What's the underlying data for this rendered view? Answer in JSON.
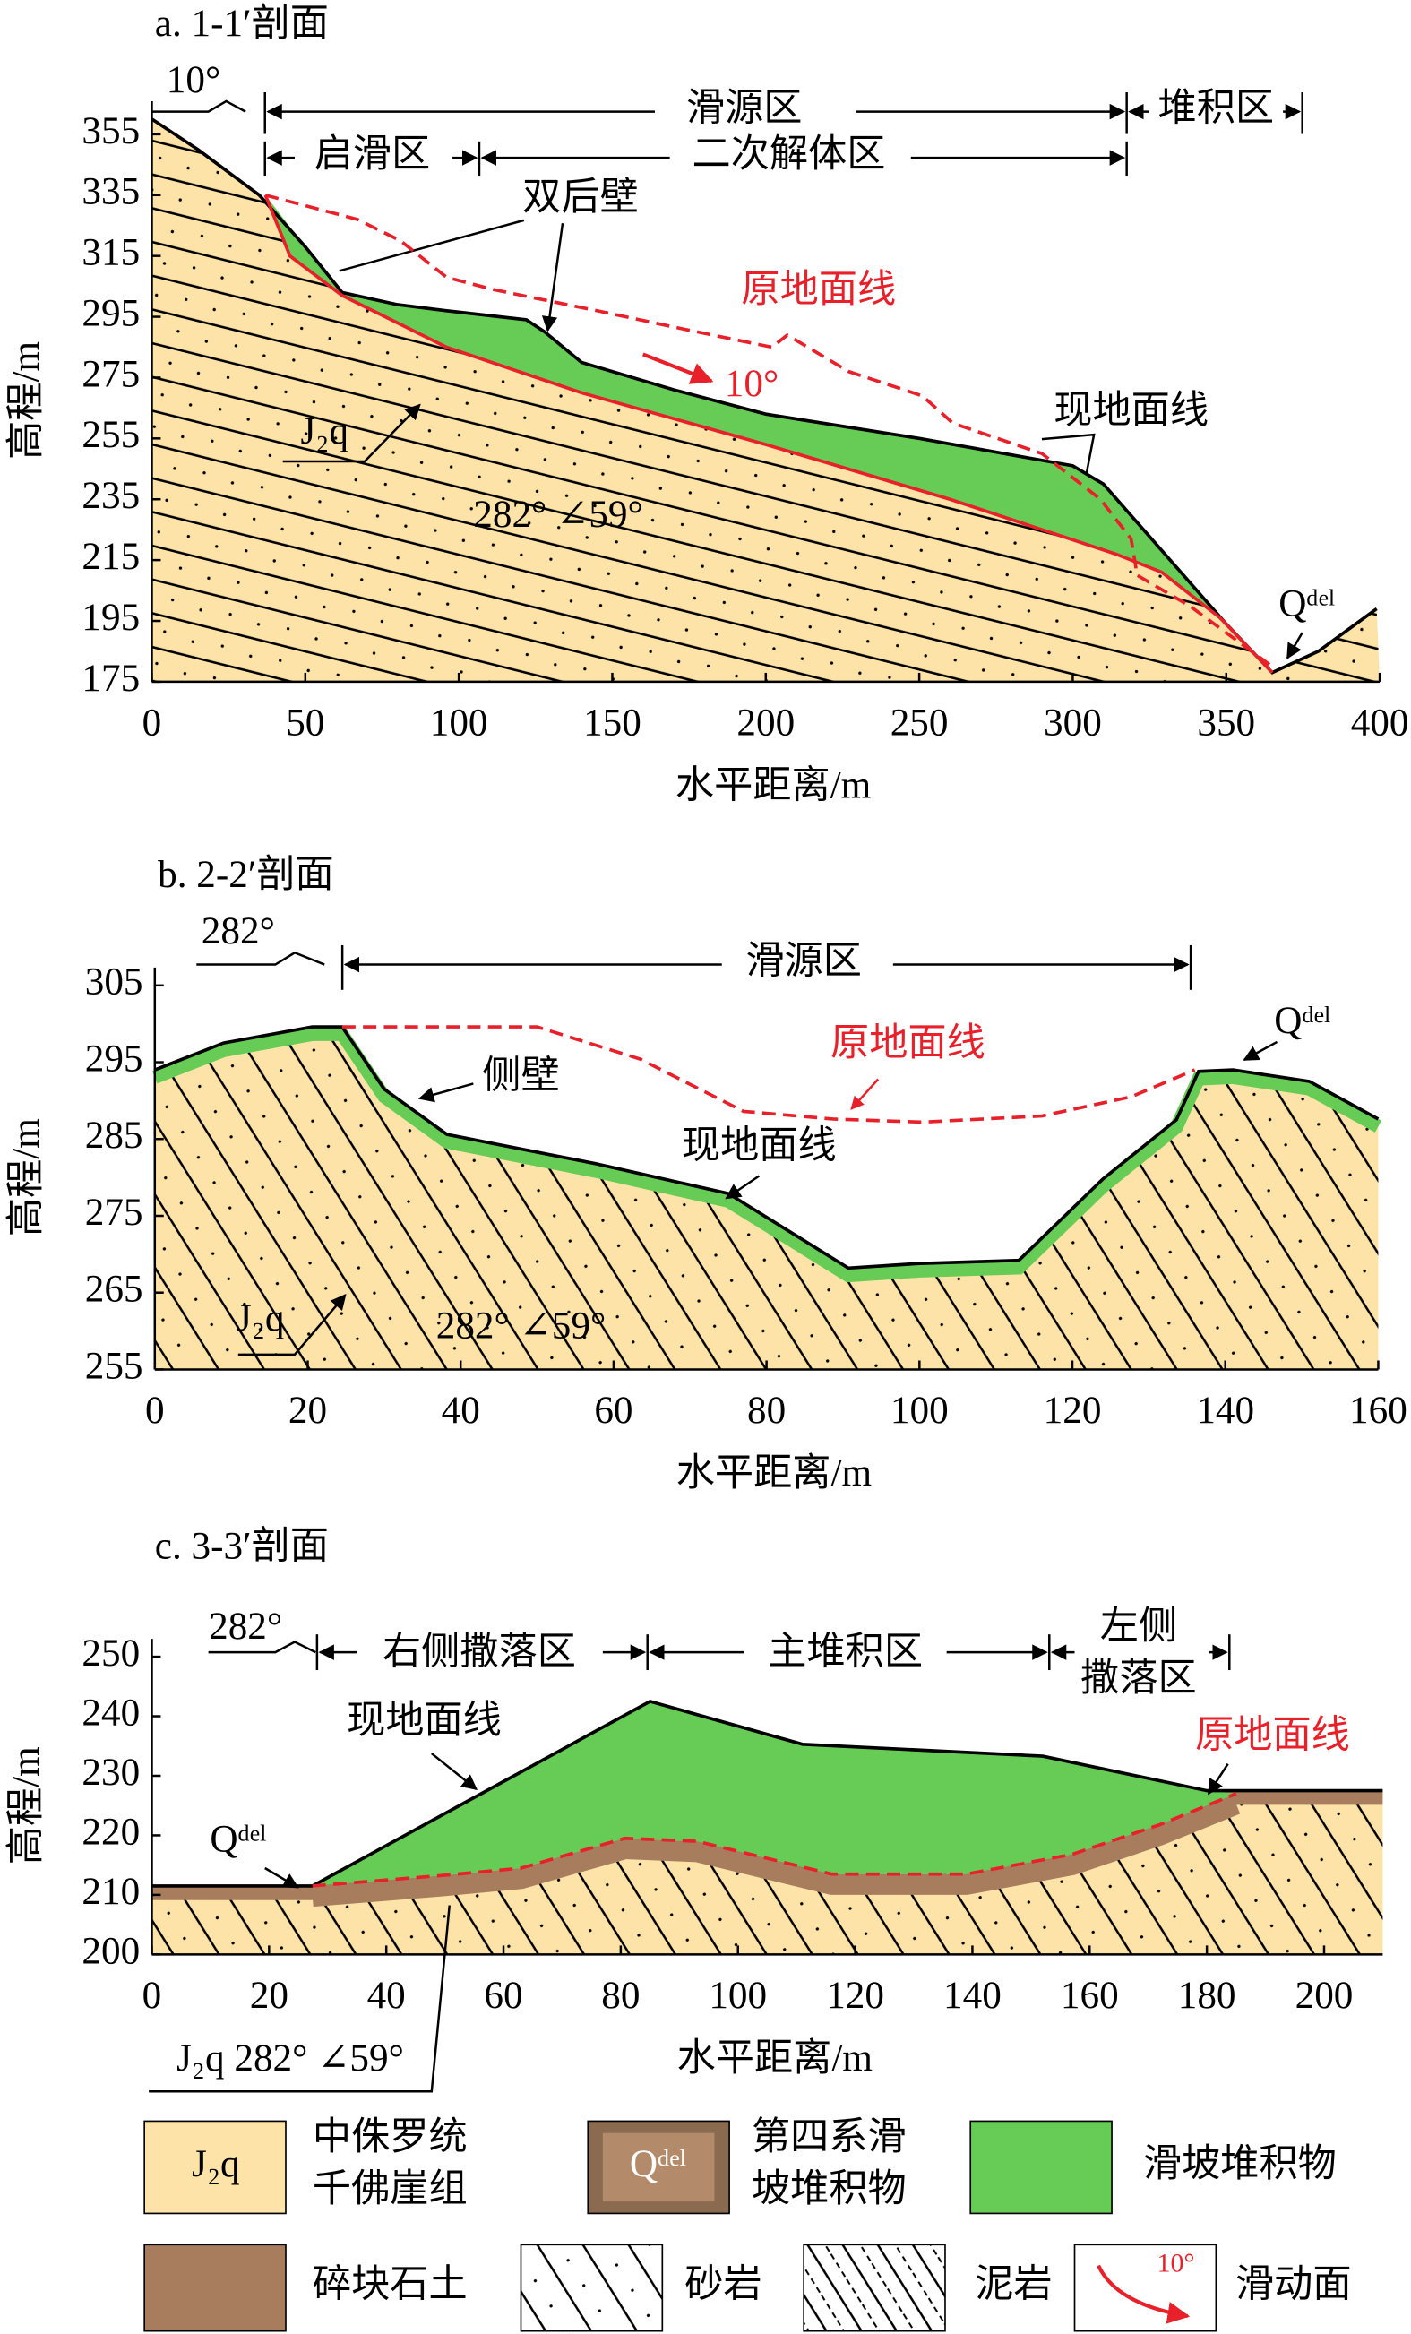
{
  "chart_data": [
    {
      "type": "line",
      "title": "a. 1-1′剖面",
      "xlabel": "水平距离/m",
      "ylabel": "高程/m",
      "xlim": [
        0,
        400
      ],
      "ylim": [
        175,
        360
      ],
      "xticks": [
        0,
        50,
        100,
        150,
        200,
        250,
        300,
        350,
        400
      ],
      "yticks": [
        175,
        195,
        215,
        235,
        255,
        275,
        295,
        315,
        335,
        355
      ],
      "series": [
        {
          "name": "现地面线",
          "color": "#000000",
          "style": "solid",
          "x": [
            0,
            15,
            35,
            50,
            62,
            80,
            96,
            122,
            128,
            140,
            170,
            200,
            250,
            300,
            310,
            330,
            350,
            365,
            380,
            399
          ],
          "values": [
            360,
            350,
            335,
            318,
            303,
            299,
            297,
            294,
            290,
            280,
            271,
            263,
            255,
            246,
            240,
            217,
            194,
            178,
            185,
            199
          ]
        },
        {
          "name": "原地面线",
          "color": "#e8202a",
          "style": "dashed",
          "x": [
            37,
            67,
            81,
            96,
            111,
            145,
            173,
            202,
            207,
            227,
            251,
            261,
            290,
            309,
            319,
            321,
            338,
            365
          ],
          "values": [
            335,
            327,
            320,
            308,
            304,
            297,
            291,
            285,
            289,
            277,
            269,
            260,
            250,
            235,
            222,
            210,
            200,
            180
          ]
        },
        {
          "color": "#e8202a",
          "style": "solid",
          "x": [
            37,
            45,
            62,
            96,
            140,
            200,
            260,
            314,
            329,
            348,
            365
          ],
          "values": [
            335,
            315,
            302,
            285,
            270,
            253,
            235,
            217,
            211,
            196,
            178
          ]
        }
      ],
      "annotations": [
        "10°",
        "滑源区",
        "堆积区",
        "启滑区",
        "二次解体区",
        "双后壁",
        "10°",
        "J₂q",
        "282° ∠59°",
        "Qᵈᵉˡ"
      ]
    },
    {
      "type": "line",
      "title": "b. 2-2′剖面",
      "xlabel": "水平距离/m",
      "ylabel": "高程/m",
      "xlim": [
        0,
        160
      ],
      "ylim": [
        255,
        305
      ],
      "xticks": [
        0,
        20,
        40,
        60,
        80,
        100,
        120,
        140,
        160
      ],
      "yticks": [
        255,
        265,
        275,
        285,
        295,
        305
      ],
      "series": [
        {
          "name": "现地面线",
          "color": "#000000",
          "style": "solid",
          "x": [
            0,
            9,
            20.6,
            24.5,
            30,
            38.2,
            57.6,
            75,
            90.7,
            100,
            113,
            124,
            133.6,
            136.5,
            141,
            151,
            160
          ],
          "values": [
            294,
            297.5,
            299.6,
            299.6,
            291.5,
            285.6,
            281.8,
            277.9,
            268.2,
            268.8,
            269.2,
            279.8,
            287.5,
            293.8,
            294,
            292.5,
            287.6
          ]
        },
        {
          "name": "原地面线",
          "color": "#e8202a",
          "style": "dashed",
          "x": [
            24.5,
            50,
            63.5,
            77,
            88.7,
            100.4,
            116,
            127.7,
            136
          ],
          "values": [
            299.6,
            299.6,
            295.4,
            288.6,
            287.6,
            287.2,
            288,
            290.5,
            294
          ]
        }
      ],
      "annotations": [
        "282°",
        "滑源区",
        "侧壁",
        "Qᵈᵉˡ",
        "J₂q",
        "282° ∠59°"
      ]
    },
    {
      "type": "line",
      "title": "c. 3-3′剖面",
      "xlabel": "水平距离/m",
      "ylabel": "高程/m",
      "xlim": [
        0,
        210
      ],
      "ylim": [
        200,
        250
      ],
      "xticks": [
        0,
        20,
        40,
        60,
        80,
        100,
        120,
        140,
        160,
        180,
        200
      ],
      "yticks": [
        200,
        210,
        220,
        230,
        240,
        250
      ],
      "series": [
        {
          "name": "现地面线",
          "color": "#000000",
          "style": "solid",
          "x": [
            0,
            27.4,
            85,
            111,
            152,
            180,
            186,
            210
          ],
          "values": [
            211.5,
            211.5,
            242.5,
            235.3,
            233.3,
            227.5,
            227.5,
            227.5
          ]
        },
        {
          "name": "原地面线",
          "color": "#e8202a",
          "style": "dashed",
          "x": [
            27.4,
            50,
            63,
            80.7,
            93,
            116,
            139,
            157,
            172,
            185
          ],
          "values": [
            211.5,
            213.3,
            214.5,
            219.5,
            219,
            213.5,
            213.5,
            216.8,
            221.8,
            227
          ]
        }
      ],
      "annotations": [
        "282°",
        "右侧撒落区",
        "主堆积区",
        "左侧",
        "撒落区",
        "Qᵈᵉˡ",
        "J₂q 282° ∠59°"
      ]
    }
  ],
  "legend": [
    {
      "swatch": "J₂q",
      "lines": [
        "中侏罗统",
        "千佛崖组"
      ]
    },
    {
      "swatch": "Qᵈᵉˡ",
      "lines": [
        "第四系滑",
        "坡堆积物"
      ]
    },
    {
      "lines": [
        "滑坡堆积物"
      ]
    },
    {
      "lines": [
        "碎块石土"
      ]
    },
    {
      "lines": [
        "砂岩"
      ]
    },
    {
      "lines": [
        "泥岩"
      ]
    },
    {
      "swatch": "10°",
      "lines": [
        "滑动面"
      ]
    }
  ]
}
